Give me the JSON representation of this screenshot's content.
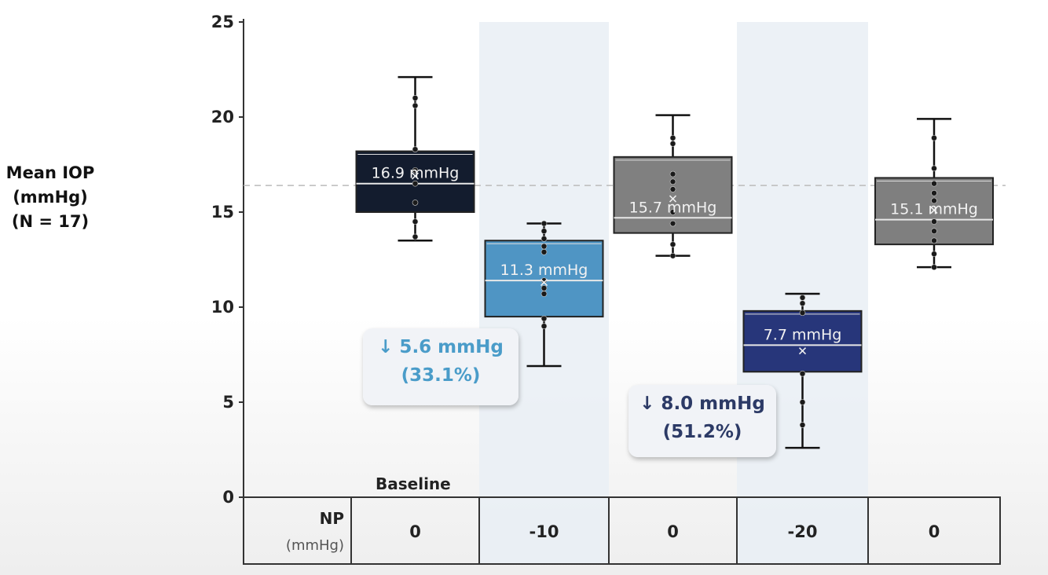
{
  "y_axis_label": [
    "Mean IOP",
    "(mmHg)",
    "(N = 17)"
  ],
  "baseline_label": "Baseline",
  "table": {
    "row_label": "NP",
    "row_unit": "(mmHg)",
    "values": [
      "0",
      "-10",
      "0",
      "-20",
      "0"
    ]
  },
  "callouts": [
    {
      "text": "↓ 5.6 mmHg",
      "pct": "(33.1%)",
      "color": "#4a9cc9"
    },
    {
      "text": "↓ 8.0 mmHg",
      "pct": "(51.2%)",
      "color": "#2c3a66"
    }
  ],
  "chart_data": {
    "type": "box",
    "ylim": [
      0,
      25
    ],
    "yticks": [
      0,
      5,
      10,
      15,
      20,
      25
    ],
    "reference_line": 16.4,
    "shaded_columns": [
      1,
      3
    ],
    "categories": [
      "0",
      "-10",
      "0",
      "-20",
      "0"
    ],
    "boxes": [
      {
        "label": "16.9 mmHg",
        "color": "#131c2e",
        "whisker_low": 13.5,
        "q1": 15.0,
        "median": 16.5,
        "q3": 18.2,
        "whisker_high": 22.1,
        "mean": 16.9,
        "points": [
          13.7,
          14.5,
          15.5,
          16.5,
          17.2,
          18.3,
          20.6,
          21.0
        ]
      },
      {
        "label": "11.3 mmHg",
        "color": "#4f95c4",
        "whisker_low": 6.9,
        "q1": 9.5,
        "median": 11.4,
        "q3": 13.5,
        "whisker_high": 14.4,
        "mean": 11.3,
        "points": [
          9.0,
          9.4,
          10.7,
          11.0,
          11.4,
          12.9,
          13.2,
          13.6,
          14.0,
          14.4
        ]
      },
      {
        "label": "15.7 mmHg",
        "color": "#808080",
        "whisker_low": 12.7,
        "q1": 13.9,
        "median": 14.7,
        "q3": 17.9,
        "whisker_high": 20.1,
        "mean": 15.7,
        "points": [
          12.7,
          13.3,
          14.4,
          15.0,
          16.2,
          16.6,
          17.0,
          18.6,
          18.9
        ]
      },
      {
        "label": "7.7 mmHg",
        "color": "#27367a",
        "whisker_low": 2.6,
        "q1": 6.6,
        "median": 8.0,
        "q3": 9.8,
        "whisker_high": 10.7,
        "mean": 7.7,
        "points": [
          3.8,
          5.0,
          6.5,
          9.7,
          10.2,
          10.5
        ]
      },
      {
        "label": "15.1 mmHg",
        "color": "#7f7f7f",
        "whisker_low": 12.1,
        "q1": 13.3,
        "median": 14.6,
        "q3": 16.8,
        "whisker_high": 19.9,
        "mean": 15.1,
        "points": [
          12.1,
          12.8,
          13.5,
          14.0,
          14.5,
          15.6,
          16.0,
          16.5,
          17.3,
          18.9
        ]
      }
    ]
  }
}
